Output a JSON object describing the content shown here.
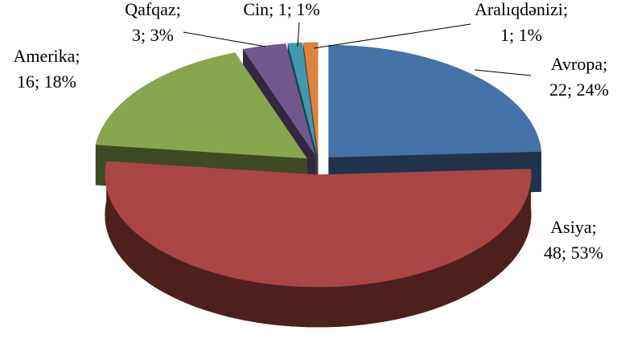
{
  "chart_data": {
    "type": "pie3d",
    "values": [
      22,
      48,
      16,
      3,
      1,
      1
    ],
    "colors": [
      "#4572a7",
      "#aa4643",
      "#89a54e",
      "#71588f",
      "#4198af",
      "#db843d"
    ],
    "data_labels": [
      [
        "Avropa;",
        "22; 24%"
      ],
      [
        "Asiya;",
        "48; 53%"
      ],
      [
        "Amerika;",
        "16; 18%"
      ],
      [
        "Qafqaz;",
        "3; 3%"
      ],
      [
        "Cin; 1; 1%"
      ],
      [
        "Aralıqdənizi;",
        "1; 1%"
      ]
    ]
  }
}
